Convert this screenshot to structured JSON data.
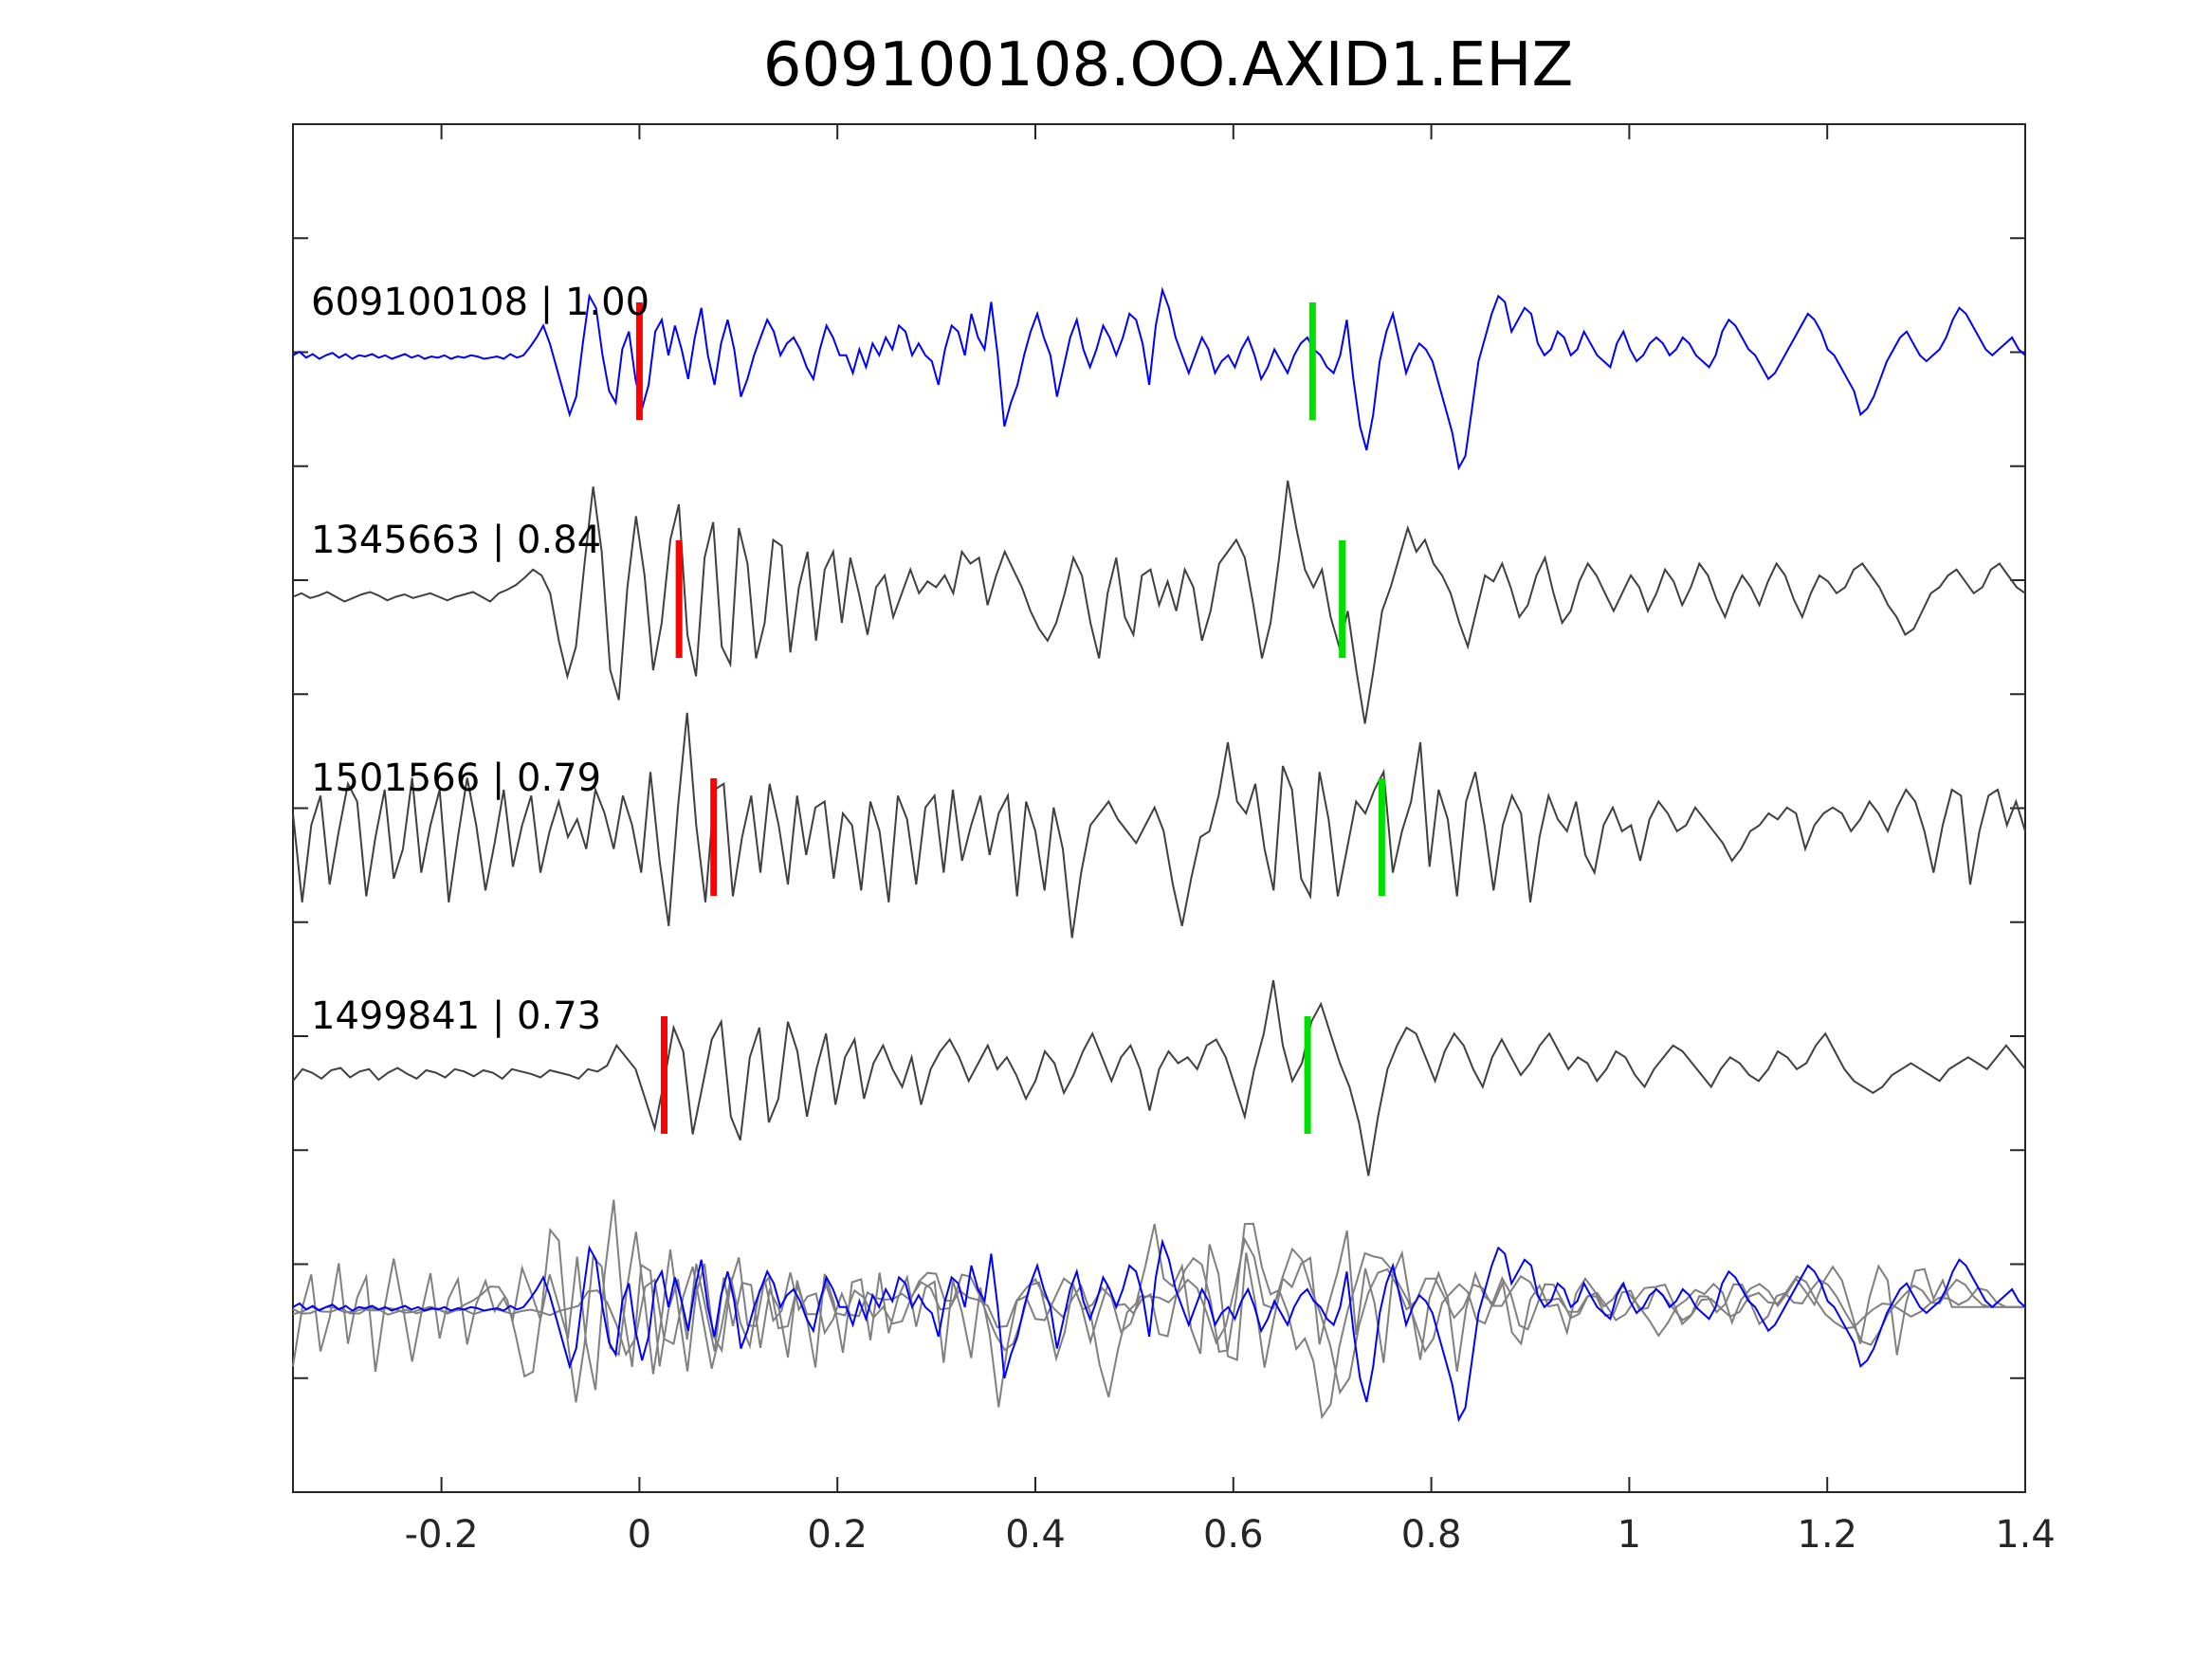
{
  "chart_data": {
    "type": "line",
    "title": "609100108.OO.AXID1.EHZ",
    "xlabel": "",
    "ylabel": "",
    "xlim": [
      -0.35,
      1.4
    ],
    "x_ticks": [
      -0.2,
      0,
      0.2,
      0.4,
      0.6,
      0.8,
      1,
      1.2,
      1.4
    ],
    "x_tick_labels": [
      "-0.2",
      "0",
      "0.2",
      "0.4",
      "0.6",
      "0.8",
      "1",
      "1.2",
      "1.4"
    ],
    "y_tick_count": 12,
    "grid": false,
    "legend": false,
    "colors": {
      "primary": "#0000ff",
      "match": "#404040",
      "overlay": "#808080",
      "p_pick": "#ff0000",
      "s_pick": "#00e000"
    },
    "series": [
      {
        "label": "609100108 | 1.00",
        "p_pick": 0.0,
        "s_pick": 0.68,
        "samples": [
          0.05,
          0.08,
          0.03,
          0.06,
          0.02,
          0.05,
          0.07,
          0.03,
          0.06,
          0.02,
          0.05,
          0.04,
          0.06,
          0.03,
          0.05,
          0.02,
          0.04,
          0.06,
          0.03,
          0.05,
          0.02,
          0.04,
          0.03,
          0.05,
          0.02,
          0.04,
          0.03,
          0.05,
          0.04,
          0.02,
          0.03,
          0.04,
          0.02,
          0.06,
          0.03,
          0.05,
          0.12,
          0.2,
          0.3,
          0.15,
          -0.05,
          -0.25,
          -0.45,
          -0.3,
          0.15,
          0.55,
          0.45,
          0.05,
          -0.25,
          -0.35,
          0.1,
          0.25,
          -0.15,
          -0.4,
          -0.2,
          0.25,
          0.35,
          0.05,
          0.3,
          0.1,
          -0.15,
          0.2,
          0.45,
          0.05,
          -0.2,
          0.15,
          0.35,
          0.1,
          -0.3,
          -0.15,
          0.05,
          0.2,
          0.35,
          0.25,
          0.05,
          0.15,
          0.2,
          0.1,
          -0.05,
          -0.15,
          0.1,
          0.3,
          0.2,
          0.05,
          0.05,
          -0.1,
          0.1,
          -0.05,
          0.15,
          0.05,
          0.2,
          0.1,
          0.3,
          0.25,
          0.05,
          0.15,
          0.05,
          0.0,
          -0.2,
          0.1,
          0.3,
          0.25,
          0.05,
          0.4,
          0.2,
          0.1,
          0.5,
          0.05,
          -0.55,
          -0.35,
          -0.2,
          0.05,
          0.25,
          0.4,
          0.2,
          0.05,
          -0.3,
          -0.05,
          0.2,
          0.35,
          0.1,
          -0.05,
          0.1,
          0.3,
          0.2,
          0.05,
          0.2,
          0.4,
          0.35,
          0.15,
          -0.2,
          0.3,
          0.6,
          0.45,
          0.2,
          0.05,
          -0.1,
          0.05,
          0.2,
          0.1,
          -0.1,
          0.0,
          0.05,
          -0.05,
          0.1,
          0.2,
          0.05,
          -0.15,
          -0.05,
          0.1,
          0.0,
          -0.1,
          0.05,
          0.15,
          0.2,
          0.1,
          0.05,
          -0.05,
          -0.1,
          0.05,
          0.35,
          -0.15,
          -0.55,
          -0.75,
          -0.45,
          0.0,
          0.25,
          0.4,
          0.15,
          -0.1,
          0.05,
          0.15,
          0.1,
          0.0,
          -0.2,
          -0.4,
          -0.6,
          -0.9,
          -0.8,
          -0.4,
          0.0,
          0.2,
          0.4,
          0.55,
          0.5,
          0.25,
          0.35,
          0.45,
          0.4,
          0.15,
          0.05,
          0.1,
          0.25,
          0.2,
          0.05,
          0.1,
          0.25,
          0.15,
          0.05,
          0.0,
          -0.05,
          0.15,
          0.25,
          0.1,
          0.0,
          0.05,
          0.15,
          0.2,
          0.15,
          0.05,
          0.1,
          0.2,
          0.15,
          0.05,
          0.0,
          -0.05,
          0.05,
          0.25,
          0.35,
          0.3,
          0.2,
          0.1,
          0.05,
          -0.05,
          -0.15,
          -0.1,
          0.0,
          0.1,
          0.2,
          0.3,
          0.4,
          0.35,
          0.25,
          0.1,
          0.05,
          -0.05,
          -0.15,
          -0.25,
          -0.45,
          -0.4,
          -0.3,
          -0.15,
          0.0,
          0.1,
          0.2,
          0.25,
          0.15,
          0.05,
          0.0,
          0.05,
          0.1,
          0.2,
          0.35,
          0.45,
          0.4,
          0.3,
          0.2,
          0.1,
          0.05,
          0.1,
          0.15,
          0.2,
          0.1,
          0.05
        ]
      },
      {
        "label": "1345663 | 0.84",
        "p_pick": 0.04,
        "s_pick": 0.71,
        "samples": [
          0.02,
          0.05,
          0.01,
          0.03,
          0.06,
          0.02,
          -0.02,
          0.01,
          0.04,
          0.06,
          0.03,
          -0.01,
          0.02,
          0.04,
          0.01,
          0.03,
          0.05,
          0.02,
          -0.01,
          0.02,
          0.04,
          0.06,
          0.02,
          -0.02,
          0.05,
          0.08,
          0.12,
          0.18,
          0.25,
          0.2,
          0.05,
          -0.35,
          -0.65,
          -0.4,
          0.3,
          0.95,
          0.4,
          -0.6,
          -0.85,
          0.1,
          0.7,
          0.2,
          -0.6,
          -0.2,
          0.5,
          0.8,
          -0.3,
          -0.65,
          0.35,
          0.65,
          -0.4,
          -0.55,
          0.6,
          0.3,
          -0.5,
          -0.2,
          0.5,
          0.45,
          -0.45,
          0.1,
          0.4,
          -0.35,
          0.25,
          0.4,
          -0.2,
          0.35,
          0.05,
          -0.3,
          0.1,
          0.2,
          -0.15,
          0.05,
          0.25,
          0.05,
          0.15,
          0.1,
          0.2,
          0.05,
          0.4,
          0.3,
          0.35,
          -0.05,
          0.2,
          0.4,
          0.25,
          0.1,
          -0.1,
          -0.25,
          -0.35,
          -0.2,
          0.05,
          0.35,
          0.2,
          -0.2,
          -0.5,
          0.05,
          0.35,
          -0.15,
          -0.3,
          0.2,
          0.25,
          -0.05,
          0.15,
          -0.1,
          0.25,
          0.1,
          -0.35,
          -0.1,
          0.3,
          0.4,
          0.5,
          0.35,
          -0.05,
          -0.5,
          -0.2,
          0.35,
          1.0,
          0.6,
          0.25,
          0.1,
          0.25,
          -0.15,
          -0.4,
          -0.1,
          -0.6,
          -1.05,
          -0.6,
          -0.1,
          0.1,
          0.35,
          0.6,
          0.4,
          0.5,
          0.3,
          0.2,
          0.05,
          -0.2,
          -0.4,
          -0.1,
          0.2,
          0.15,
          0.3,
          0.1,
          -0.15,
          -0.05,
          0.2,
          0.35,
          0.05,
          -0.2,
          -0.1,
          0.15,
          0.3,
          0.2,
          0.05,
          -0.1,
          0.05,
          0.2,
          0.1,
          -0.1,
          0.05,
          0.25,
          0.15,
          -0.05,
          0.1,
          0.3,
          0.2,
          0.0,
          -0.15,
          0.05,
          0.2,
          0.1,
          -0.05,
          0.15,
          0.3,
          0.2,
          0.0,
          -0.15,
          0.05,
          0.2,
          0.15,
          0.05,
          0.1,
          0.25,
          0.3,
          0.2,
          0.1,
          -0.05,
          -0.15,
          -0.3,
          -0.25,
          -0.1,
          0.05,
          0.1,
          0.2,
          0.25,
          0.15,
          0.05,
          0.1,
          0.25,
          0.3,
          0.2,
          0.1,
          0.05
        ]
      },
      {
        "label": "1501566 | 0.79",
        "p_pick": 0.075,
        "s_pick": 0.75,
        "samples": [
          0.2,
          -0.55,
          0.1,
          0.35,
          -0.4,
          0.05,
          0.45,
          0.3,
          -0.5,
          0.0,
          0.4,
          -0.35,
          -0.1,
          0.5,
          -0.3,
          0.1,
          0.4,
          -0.55,
          0.0,
          0.5,
          0.1,
          -0.45,
          -0.05,
          0.4,
          -0.25,
          0.1,
          0.35,
          -0.3,
          0.05,
          0.3,
          0.0,
          0.15,
          -0.1,
          0.4,
          0.2,
          -0.1,
          0.35,
          0.1,
          -0.3,
          0.55,
          -0.2,
          -0.75,
          0.25,
          1.05,
          0.1,
          -0.55,
          0.4,
          0.45,
          -0.5,
          0.0,
          0.35,
          -0.3,
          0.45,
          0.1,
          -0.4,
          0.35,
          -0.15,
          0.25,
          0.3,
          -0.35,
          0.2,
          0.1,
          -0.45,
          0.3,
          0.05,
          -0.55,
          0.35,
          0.15,
          -0.4,
          0.25,
          0.35,
          -0.3,
          0.4,
          -0.2,
          0.1,
          0.35,
          -0.15,
          0.2,
          0.35,
          -0.5,
          0.3,
          0.05,
          -0.45,
          0.25,
          -0.1,
          -0.85,
          -0.3,
          0.1,
          0.2,
          0.3,
          0.15,
          0.05,
          -0.05,
          0.1,
          0.25,
          0.05,
          -0.4,
          -0.75,
          -0.35,
          0.0,
          0.05,
          0.35,
          0.8,
          0.3,
          0.2,
          0.45,
          -0.1,
          -0.45,
          0.6,
          0.4,
          -0.35,
          -0.5,
          0.55,
          0.15,
          -0.5,
          -0.1,
          0.3,
          0.2,
          0.4,
          0.55,
          -0.3,
          0.05,
          0.3,
          0.8,
          -0.25,
          0.4,
          0.15,
          -0.5,
          0.3,
          0.55,
          0.1,
          -0.45,
          0.1,
          0.35,
          0.2,
          -0.55,
          0.0,
          0.35,
          0.15,
          0.05,
          0.3,
          -0.15,
          -0.3,
          0.1,
          0.25,
          0.05,
          0.1,
          -0.2,
          0.15,
          0.3,
          0.2,
          0.05,
          0.1,
          0.25,
          0.15,
          0.05,
          -0.05,
          -0.2,
          -0.1,
          0.05,
          0.1,
          0.2,
          0.15,
          0.25,
          0.2,
          -0.1,
          0.1,
          0.2,
          0.25,
          0.2,
          0.05,
          0.15,
          0.3,
          0.2,
          0.05,
          0.25,
          0.4,
          0.3,
          0.05,
          -0.3,
          0.1,
          0.4,
          0.35,
          -0.4,
          0.05,
          0.35,
          0.4,
          0.1,
          0.3,
          0.05
        ]
      },
      {
        "label": "1499841 | 0.73",
        "p_pick": 0.025,
        "s_pick": 0.675,
        "samples": [
          -0.05,
          0.05,
          0.02,
          -0.03,
          0.04,
          0.06,
          -0.02,
          0.03,
          0.05,
          -0.04,
          0.02,
          0.06,
          0.01,
          -0.03,
          0.04,
          0.02,
          -0.02,
          0.05,
          0.03,
          -0.01,
          0.04,
          0.02,
          -0.03,
          0.05,
          0.03,
          0.01,
          -0.02,
          0.04,
          0.02,
          0.0,
          -0.03,
          0.05,
          0.03,
          0.08,
          0.25,
          0.15,
          0.05,
          -0.2,
          -0.45,
          -0.05,
          0.4,
          0.2,
          -0.5,
          -0.1,
          0.3,
          0.45,
          -0.35,
          -0.55,
          0.15,
          0.4,
          -0.4,
          -0.2,
          0.45,
          0.2,
          -0.35,
          0.05,
          0.35,
          -0.25,
          0.15,
          0.3,
          -0.2,
          0.1,
          0.25,
          0.05,
          -0.1,
          0.15,
          -0.25,
          0.05,
          0.2,
          0.3,
          0.15,
          -0.05,
          0.1,
          0.25,
          0.05,
          0.15,
          0.0,
          -0.2,
          -0.05,
          0.2,
          0.1,
          -0.15,
          0.0,
          0.2,
          0.35,
          0.15,
          -0.05,
          0.15,
          0.25,
          0.05,
          -0.3,
          0.05,
          0.2,
          0.1,
          0.15,
          0.05,
          0.25,
          0.3,
          0.15,
          -0.1,
          -0.35,
          0.05,
          0.35,
          0.8,
          0.25,
          -0.05,
          0.1,
          0.45,
          0.6,
          0.35,
          0.1,
          -0.1,
          -0.4,
          -0.85,
          -0.35,
          0.05,
          0.25,
          0.4,
          0.35,
          0.15,
          -0.05,
          0.2,
          0.35,
          0.25,
          0.05,
          -0.1,
          0.15,
          0.3,
          0.15,
          0.0,
          0.1,
          0.25,
          0.35,
          0.2,
          0.05,
          0.15,
          0.1,
          -0.05,
          0.05,
          0.2,
          0.15,
          0.0,
          -0.1,
          0.05,
          0.15,
          0.25,
          0.2,
          0.1,
          0.0,
          -0.1,
          0.05,
          0.15,
          0.1,
          0.0,
          -0.05,
          0.05,
          0.2,
          0.15,
          0.05,
          0.1,
          0.25,
          0.35,
          0.2,
          0.05,
          -0.05,
          -0.1,
          -0.15,
          -0.1,
          0.0,
          0.05,
          0.1,
          0.05,
          0.0,
          -0.05,
          0.05,
          0.1,
          0.15,
          0.1,
          0.05,
          0.15,
          0.25,
          0.15,
          0.05
        ]
      }
    ]
  }
}
